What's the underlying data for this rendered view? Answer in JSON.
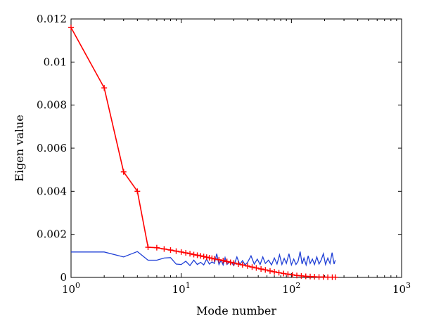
{
  "chart_data": {
    "type": "line",
    "xlabel": "Mode number",
    "ylabel": "Eigen value",
    "xscale": "log",
    "xlim": [
      1,
      1000
    ],
    "ylim": [
      0,
      0.012
    ],
    "grid": false,
    "x_ticks": [
      {
        "value": 1,
        "base": "10",
        "exp": "0"
      },
      {
        "value": 10,
        "base": "10",
        "exp": "1"
      },
      {
        "value": 100,
        "base": "10",
        "exp": "2"
      },
      {
        "value": 1000,
        "base": "10",
        "exp": "3"
      }
    ],
    "y_ticks": [
      {
        "value": 0,
        "label": "0"
      },
      {
        "value": 0.002,
        "label": "0.002"
      },
      {
        "value": 0.004,
        "label": "0.004"
      },
      {
        "value": 0.006,
        "label": "0.006"
      },
      {
        "value": 0.008,
        "label": "0.008"
      },
      {
        "value": 0.01,
        "label": "0.01"
      },
      {
        "value": 0.012,
        "label": "0.012"
      }
    ],
    "series": [
      {
        "color": "#ff0000",
        "marker": "plus",
        "x": [
          1,
          2,
          3,
          4,
          5,
          6,
          7,
          8,
          9,
          10,
          11,
          12,
          13,
          14,
          15,
          16,
          17,
          18,
          19,
          20,
          22,
          24,
          26,
          28,
          30,
          33,
          36,
          40,
          44,
          48,
          53,
          58,
          64,
          70,
          77,
          85,
          93,
          102,
          112,
          123,
          135,
          148,
          162,
          178,
          195,
          214,
          235,
          250
        ],
        "values": [
          0.0116,
          0.0088,
          0.0049,
          0.004,
          0.0014,
          0.00138,
          0.00132,
          0.00127,
          0.00122,
          0.00118,
          0.00114,
          0.0011,
          0.00106,
          0.00103,
          0.001,
          0.00097,
          0.00094,
          0.00091,
          0.00089,
          0.00086,
          0.00082,
          0.00078,
          0.00074,
          0.0007,
          0.00067,
          0.00062,
          0.00058,
          0.00053,
          0.00048,
          0.00044,
          0.00039,
          0.00035,
          0.0003,
          0.00026,
          0.00022,
          0.00018,
          0.00015,
          0.00012,
          9e-05,
          7e-05,
          5e-05,
          4e-05,
          3e-05,
          2e-05,
          2e-05,
          1e-05,
          1e-05,
          1e-05
        ]
      },
      {
        "color": "#1f3fd6",
        "marker": "none",
        "x": [
          1,
          2,
          3,
          4,
          5,
          6,
          7,
          8,
          9,
          10,
          11,
          12,
          13,
          14,
          15,
          16,
          17,
          18,
          19,
          20,
          21,
          22,
          23,
          24,
          25,
          26,
          28,
          30,
          32,
          34,
          36,
          38,
          40,
          43,
          46,
          49,
          52,
          55,
          58,
          62,
          66,
          70,
          74,
          78,
          82,
          86,
          90,
          95,
          100,
          105,
          110,
          115,
          120,
          125,
          130,
          136,
          142,
          148,
          155,
          162,
          170,
          178,
          186,
          195,
          204,
          214,
          224,
          234,
          244,
          250
        ],
        "values": [
          0.00118,
          0.00118,
          0.00095,
          0.0012,
          0.0008,
          0.0008,
          0.0009,
          0.00092,
          0.00062,
          0.0006,
          0.00075,
          0.00055,
          0.0008,
          0.0006,
          0.0007,
          0.00058,
          0.00085,
          0.00062,
          0.00072,
          0.00065,
          0.0011,
          0.0006,
          0.0008,
          0.00058,
          0.00092,
          0.0006,
          0.00075,
          0.00055,
          0.00095,
          0.0006,
          0.00078,
          0.00058,
          0.0007,
          0.001,
          0.00062,
          0.00085,
          0.0006,
          0.00095,
          0.00065,
          0.0008,
          0.00058,
          0.0009,
          0.00062,
          0.00105,
          0.0006,
          0.00088,
          0.00065,
          0.0011,
          0.00058,
          0.00085,
          0.0006,
          0.00075,
          0.0012,
          0.00062,
          0.0009,
          0.00058,
          0.001,
          0.00065,
          0.00085,
          0.0006,
          0.00095,
          0.00062,
          0.0008,
          0.0011,
          0.0006,
          0.0009,
          0.00065,
          0.00115,
          0.00062,
          0.0008
        ]
      }
    ]
  }
}
